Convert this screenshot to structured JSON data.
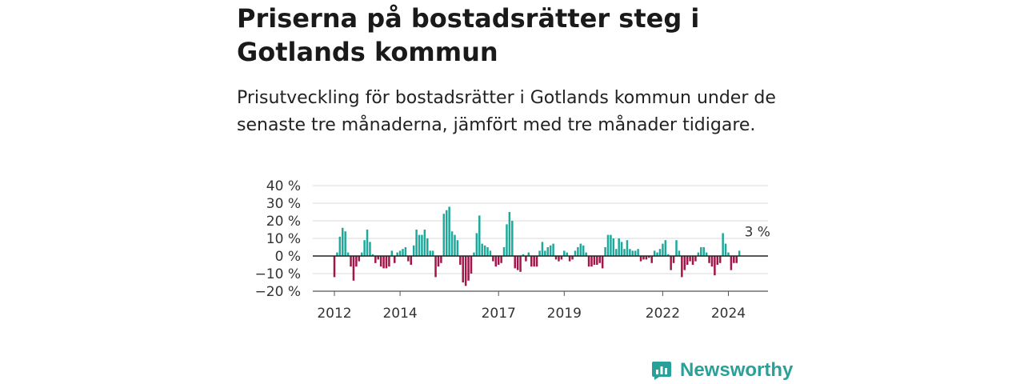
{
  "header": {
    "title": "Priserna på bostadsrätter steg i Gotlands kommun",
    "subtitle": "Prisutveckling för bostadsrätter i Gotlands kommun under de senaste tre månaderna, jämfört med tre månader tidigare."
  },
  "brand": {
    "name": "Newsworthy",
    "color": "#2aa198"
  },
  "colors": {
    "positive": "#1fa99c",
    "negative": "#a3164a",
    "grid": "#d9d9d9",
    "zero_line": "#222222"
  },
  "chart_data": {
    "type": "bar",
    "x_unit": "month",
    "start_year": 2012,
    "ylabel": "",
    "ylim": [
      -20,
      40
    ],
    "y_ticks": [
      {
        "value": 40,
        "label": "40 %"
      },
      {
        "value": 30,
        "label": "30 %"
      },
      {
        "value": 20,
        "label": "20 %"
      },
      {
        "value": 10,
        "label": "10 %"
      },
      {
        "value": 0,
        "label": "0 %"
      },
      {
        "value": -10,
        "label": "−10 %"
      },
      {
        "value": -20,
        "label": "−20 %"
      }
    ],
    "x_ticks": [
      {
        "month_index": 0,
        "label": "2012"
      },
      {
        "month_index": 24,
        "label": "2014"
      },
      {
        "month_index": 60,
        "label": "2017"
      },
      {
        "month_index": 84,
        "label": "2019"
      },
      {
        "month_index": 120,
        "label": "2022"
      },
      {
        "month_index": 144,
        "label": "2024"
      }
    ],
    "values": [
      -12,
      2,
      11,
      16,
      14,
      2,
      -6,
      -14,
      -6,
      -3,
      2,
      9,
      15,
      8,
      1,
      -4,
      -2,
      -6,
      -7,
      -7,
      -6,
      3,
      -4,
      2,
      3,
      4,
      5,
      -3,
      -5,
      6,
      15,
      12,
      12,
      15,
      10,
      3,
      3,
      -12,
      -6,
      -4,
      24,
      26,
      28,
      14,
      12,
      9,
      -5,
      -15,
      -17,
      -14,
      -10,
      2,
      13,
      23,
      7,
      6,
      5,
      3,
      -3,
      -6,
      -5,
      -4,
      5,
      18,
      25,
      20,
      -7,
      -8,
      -9,
      1,
      -3,
      2,
      -6,
      -6,
      -6,
      3,
      8,
      3,
      5,
      6,
      7,
      -2,
      -3,
      -2,
      3,
      2,
      -3,
      -2,
      3,
      5,
      7,
      6,
      2,
      -6,
      -6,
      -5,
      -5,
      -4,
      -7,
      5,
      12,
      12,
      10,
      4,
      10,
      8,
      4,
      9,
      4,
      3,
      3,
      4,
      -3,
      -2,
      -2,
      -1,
      -4,
      3,
      2,
      4,
      7,
      9,
      1,
      -8,
      -4,
      9,
      3,
      -12,
      -8,
      -5,
      -3,
      -5,
      -3,
      2,
      5,
      5,
      2,
      -4,
      -6,
      -11,
      -5,
      -4,
      13,
      7,
      2,
      -8,
      -4,
      -4,
      3
    ],
    "annotations": [
      {
        "month_index": 157,
        "value": 3,
        "label": "3 %"
      }
    ]
  }
}
